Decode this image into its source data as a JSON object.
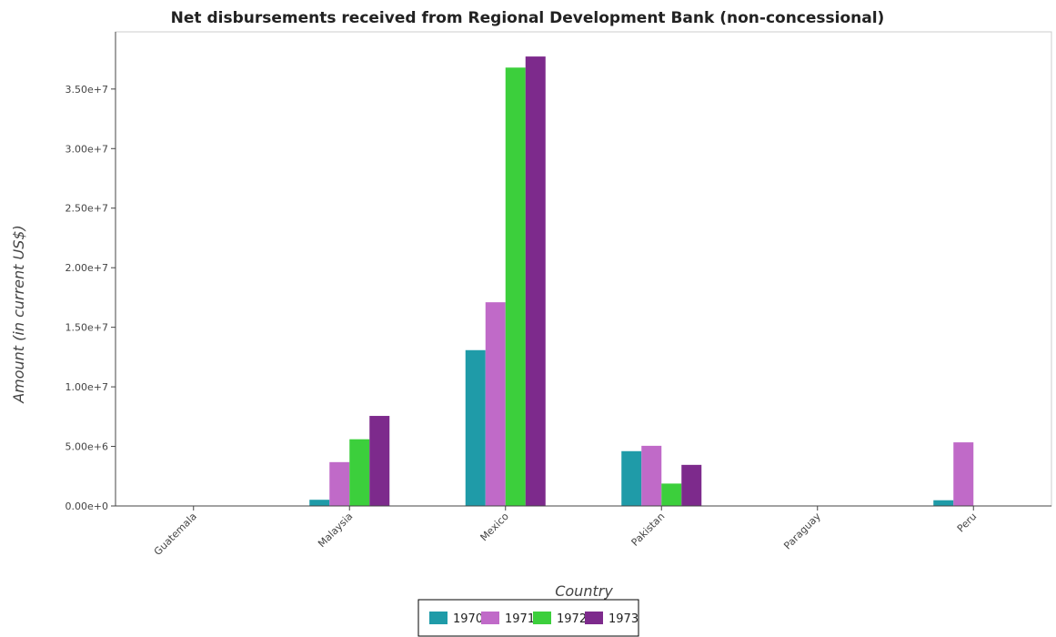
{
  "chart_data": {
    "type": "bar",
    "title": "Net disbursements received from Regional Development Bank (non-concessional)",
    "xlabel": "Country",
    "ylabel": "Amount (in current US$)",
    "categories": [
      "Guatemala",
      "Malaysia",
      "Mexico",
      "Pakistan",
      "Paraguay",
      "Peru"
    ],
    "series": [
      {
        "name": "1970",
        "color": "#1f9ba8",
        "values": [
          0,
          520000,
          13080000,
          4600000,
          0,
          480000
        ]
      },
      {
        "name": "1971",
        "color": "#c06ac8",
        "values": [
          0,
          3680000,
          17100000,
          5050000,
          0,
          5340000
        ]
      },
      {
        "name": "1972",
        "color": "#3ccf3c",
        "values": [
          0,
          5600000,
          36800000,
          1880000,
          0,
          0
        ]
      },
      {
        "name": "1973",
        "color": "#7d2a8c",
        "values": [
          0,
          7560000,
          37730000,
          3450000,
          0,
          0
        ]
      }
    ],
    "yticks": [
      0,
      5000000,
      10000000,
      15000000,
      20000000,
      25000000,
      30000000,
      35000000
    ],
    "ytick_labels": [
      "0.00e+0",
      "5.00e+6",
      "1.00e+7",
      "1.50e+7",
      "2.00e+7",
      "2.50e+7",
      "3.00e+7",
      "3.50e+7"
    ],
    "ylim": [
      0,
      39800000
    ],
    "grid": false,
    "legend_position": "bottom-center"
  }
}
